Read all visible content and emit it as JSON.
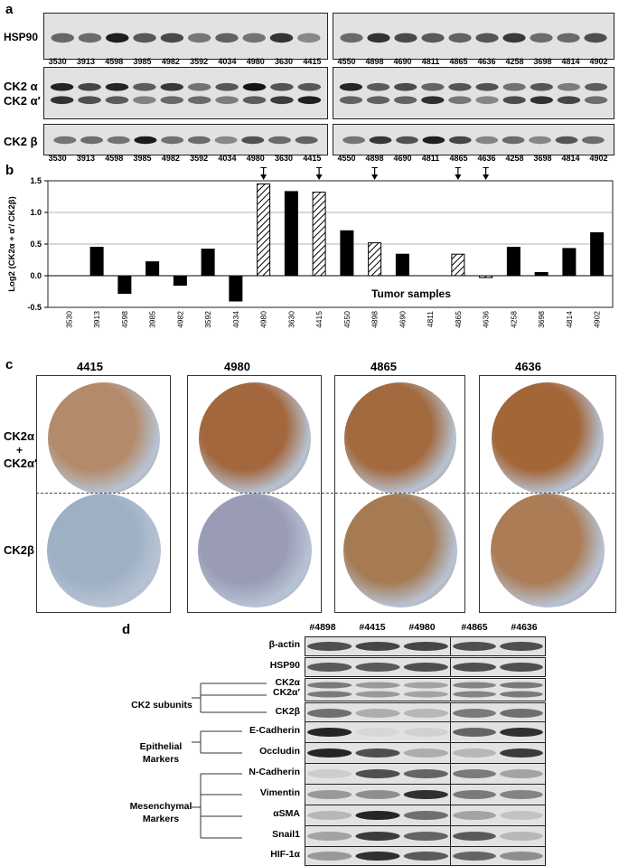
{
  "panel_a": {
    "label": "a",
    "rows": [
      "HSP90",
      "CK2 α",
      "CK2 α′",
      "CK2 β"
    ],
    "samples_left": [
      "3530",
      "3913",
      "4598",
      "3985",
      "4982",
      "3592",
      "4034",
      "4980",
      "3630",
      "4415"
    ],
    "samples_right": [
      "4550",
      "4898",
      "4690",
      "4811",
      "4865",
      "4636",
      "4258",
      "3698",
      "4814",
      "4902"
    ]
  },
  "panel_b": {
    "label": "b",
    "chart_data": {
      "type": "bar",
      "ylabel": "Log2 (CK2α + α′/ CK2β)",
      "xlabel": "Tumor samples",
      "ylim": [
        -0.5,
        1.5
      ],
      "yticks": [
        "1.5",
        "1.0",
        "0.5",
        "0.0",
        "-0.5"
      ],
      "categories": [
        "3530",
        "3913",
        "4598",
        "3985",
        "4982",
        "3592",
        "4034",
        "4980",
        "3630",
        "4415",
        "4550",
        "4898",
        "4690",
        "4811",
        "4865",
        "4636",
        "4258",
        "3698",
        "4814",
        "4902"
      ],
      "values": [
        0,
        0.45,
        -0.28,
        0.22,
        -0.15,
        0.42,
        -0.4,
        1.45,
        1.33,
        1.32,
        0.71,
        0.52,
        0.34,
        0,
        0.34,
        -0.03,
        0.45,
        0.05,
        0.43,
        0.68
      ],
      "hatched": [
        "4980",
        "4415",
        "4898",
        "4865",
        "4636"
      ],
      "arrows_above": [
        "4980",
        "4415",
        "4898",
        "4865",
        "4636"
      ]
    }
  },
  "panel_c": {
    "label": "c",
    "columns": [
      "4415",
      "4980",
      "4865",
      "4636"
    ],
    "row_labels": [
      "CK2α",
      "+",
      "CK2α′",
      "CK2β"
    ]
  },
  "panel_d": {
    "label": "d",
    "columns": [
      "#4898",
      "#4415",
      "#4980",
      "#4865",
      "#4636"
    ],
    "rows": [
      "β-actin",
      "HSP90",
      "CK2α",
      "CK2α′",
      "CK2β",
      "E-Cadherin",
      "Occludin",
      "N-Cadherin",
      "Vimentin",
      "αSMA",
      "Snail1",
      "HIF-1α"
    ],
    "groups": [
      "CK2 subunits",
      "Epithelial",
      "Markers",
      "Mesenchymal",
      "Markers"
    ]
  },
  "colors": {
    "band": "#1a1a1a",
    "membrane": "#e3e3e3",
    "ihc_brown": "#a8764a",
    "ihc_blue": "#9fb2c8"
  }
}
